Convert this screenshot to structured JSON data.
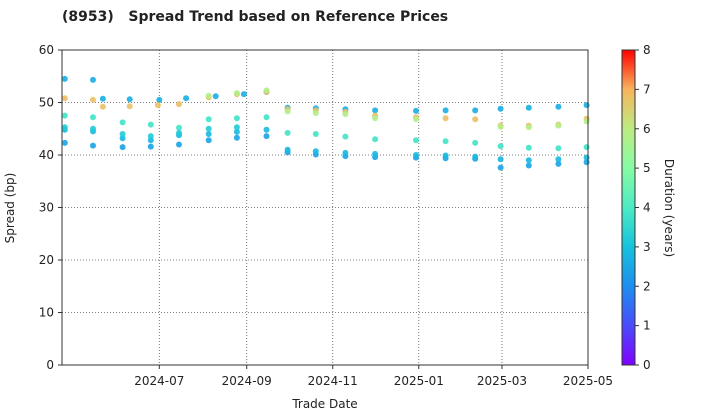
{
  "chart_data": {
    "type": "scatter",
    "title": "(8953)   Spread Trend based on Reference Prices",
    "xlabel": "Trade Date",
    "ylabel": "Spread (bp)",
    "colorbar_label": "Duration (years)",
    "x_range": [
      "2024-04-23",
      "2025-05-01"
    ],
    "xticks": [
      "2024-07",
      "2024-09",
      "2024-11",
      "2025-01",
      "2025-03",
      "2025-05"
    ],
    "ylim": [
      0,
      60
    ],
    "yticks": [
      0,
      10,
      20,
      30,
      40,
      50,
      60
    ],
    "colorbar_range": [
      0,
      8
    ],
    "colorbar_ticks": [
      0,
      1,
      2,
      3,
      4,
      5,
      6,
      7,
      8
    ],
    "colormap": "rainbow",
    "grid": true,
    "series": [
      {
        "duration": 2.4,
        "points": [
          [
            "2024-04-25",
            42.3
          ],
          [
            "2024-05-15",
            41.8
          ],
          [
            "2024-06-05",
            41.5
          ],
          [
            "2024-06-25",
            41.6
          ],
          [
            "2024-07-15",
            42.0
          ],
          [
            "2024-08-05",
            42.8
          ],
          [
            "2024-08-25",
            43.3
          ],
          [
            "2024-09-15",
            43.6
          ],
          [
            "2024-09-30",
            40.5
          ],
          [
            "2024-10-20",
            40.1
          ],
          [
            "2024-11-10",
            39.8
          ],
          [
            "2024-12-01",
            39.6
          ],
          [
            "2024-12-30",
            39.5
          ],
          [
            "2025-01-20",
            39.4
          ],
          [
            "2025-02-10",
            39.3
          ],
          [
            "2025-02-28",
            37.6
          ],
          [
            "2025-03-20",
            38.0
          ],
          [
            "2025-04-10",
            38.3
          ],
          [
            "2025-04-30",
            38.6
          ]
        ]
      },
      {
        "duration": 2.8,
        "points": [
          [
            "2024-04-25",
            44.8
          ],
          [
            "2024-05-15",
            44.5
          ],
          [
            "2024-06-05",
            43.2
          ],
          [
            "2024-06-25",
            42.8
          ],
          [
            "2024-07-15",
            43.8
          ],
          [
            "2024-08-05",
            44.0
          ],
          [
            "2024-08-25",
            44.4
          ],
          [
            "2024-09-15",
            44.8
          ],
          [
            "2024-09-30",
            41.0
          ],
          [
            "2024-10-20",
            40.7
          ],
          [
            "2024-11-10",
            40.4
          ],
          [
            "2024-12-01",
            40.2
          ],
          [
            "2024-12-30",
            40.0
          ],
          [
            "2025-01-20",
            39.9
          ],
          [
            "2025-02-10",
            39.7
          ],
          [
            "2025-02-28",
            39.2
          ],
          [
            "2025-03-20",
            39.0
          ],
          [
            "2025-04-10",
            39.2
          ],
          [
            "2025-04-30",
            39.5
          ]
        ]
      },
      {
        "duration": 2.6,
        "points": [
          [
            "2024-04-25",
            54.5
          ],
          [
            "2024-05-15",
            54.3
          ],
          [
            "2024-05-22",
            50.7
          ],
          [
            "2024-06-10",
            50.6
          ],
          [
            "2024-07-01",
            50.5
          ],
          [
            "2024-07-20",
            50.8
          ],
          [
            "2024-08-10",
            51.2
          ],
          [
            "2024-08-30",
            51.6
          ],
          [
            "2024-09-15",
            52.0
          ],
          [
            "2024-09-30",
            49.0
          ],
          [
            "2024-10-20",
            48.9
          ],
          [
            "2024-11-10",
            48.7
          ],
          [
            "2024-12-01",
            48.5
          ],
          [
            "2024-12-30",
            48.4
          ],
          [
            "2025-01-20",
            48.5
          ],
          [
            "2025-02-10",
            48.5
          ],
          [
            "2025-02-28",
            48.8
          ],
          [
            "2025-03-20",
            49.0
          ],
          [
            "2025-04-10",
            49.2
          ],
          [
            "2025-04-30",
            49.5
          ]
        ]
      },
      {
        "duration": 3.8,
        "points": [
          [
            "2024-04-25",
            47.5
          ],
          [
            "2024-05-15",
            47.2
          ],
          [
            "2024-06-05",
            46.2
          ],
          [
            "2024-06-25",
            45.8
          ],
          [
            "2024-07-15",
            45.2
          ],
          [
            "2024-08-05",
            46.8
          ],
          [
            "2024-08-25",
            47.0
          ],
          [
            "2024-09-15",
            47.2
          ],
          [
            "2024-09-30",
            44.2
          ],
          [
            "2024-10-20",
            44.0
          ],
          [
            "2024-11-10",
            43.5
          ],
          [
            "2024-12-01",
            43.0
          ],
          [
            "2024-12-30",
            42.8
          ],
          [
            "2025-01-20",
            42.6
          ],
          [
            "2025-02-10",
            42.3
          ],
          [
            "2025-02-28",
            41.7
          ],
          [
            "2025-03-20",
            41.4
          ],
          [
            "2025-04-10",
            41.3
          ],
          [
            "2025-04-30",
            41.5
          ]
        ]
      },
      {
        "duration": 3.2,
        "points": [
          [
            "2024-04-25",
            45.3
          ],
          [
            "2024-05-15",
            45.0
          ],
          [
            "2024-06-05",
            44.0
          ],
          [
            "2024-06-25",
            43.6
          ],
          [
            "2024-07-15",
            44.2
          ],
          [
            "2024-08-05",
            45.0
          ],
          [
            "2024-08-25",
            45.3
          ]
        ]
      },
      {
        "duration": 6.8,
        "points": [
          [
            "2024-04-25",
            50.8
          ],
          [
            "2024-05-15",
            50.5
          ],
          [
            "2024-05-22",
            49.2
          ],
          [
            "2024-06-10",
            49.3
          ],
          [
            "2024-06-30",
            49.5
          ],
          [
            "2024-07-15",
            49.7
          ],
          [
            "2024-08-05",
            51.0
          ],
          [
            "2024-08-25",
            51.6
          ],
          [
            "2024-09-15",
            52.0
          ],
          [
            "2024-09-30",
            48.7
          ],
          [
            "2024-10-20",
            48.5
          ],
          [
            "2024-11-10",
            48.2
          ],
          [
            "2024-12-01",
            47.5
          ],
          [
            "2024-12-30",
            47.2
          ],
          [
            "2025-01-20",
            47.0
          ],
          [
            "2025-02-10",
            46.8
          ],
          [
            "2025-02-28",
            45.6
          ],
          [
            "2025-03-20",
            45.6
          ],
          [
            "2025-04-10",
            45.8
          ],
          [
            "2025-04-30",
            46.9
          ]
        ]
      },
      {
        "duration": 5.8,
        "points": [
          [
            "2024-08-05",
            51.3
          ],
          [
            "2024-08-25",
            51.8
          ],
          [
            "2024-09-15",
            52.3
          ],
          [
            "2024-09-30",
            48.3
          ],
          [
            "2024-10-20",
            48.0
          ],
          [
            "2024-11-10",
            47.8
          ],
          [
            "2024-12-01",
            47.0
          ],
          [
            "2024-12-30",
            46.8
          ],
          [
            "2025-02-28",
            45.4
          ],
          [
            "2025-03-20",
            45.3
          ],
          [
            "2025-04-10",
            45.6
          ],
          [
            "2025-04-30",
            46.4
          ]
        ]
      }
    ]
  }
}
